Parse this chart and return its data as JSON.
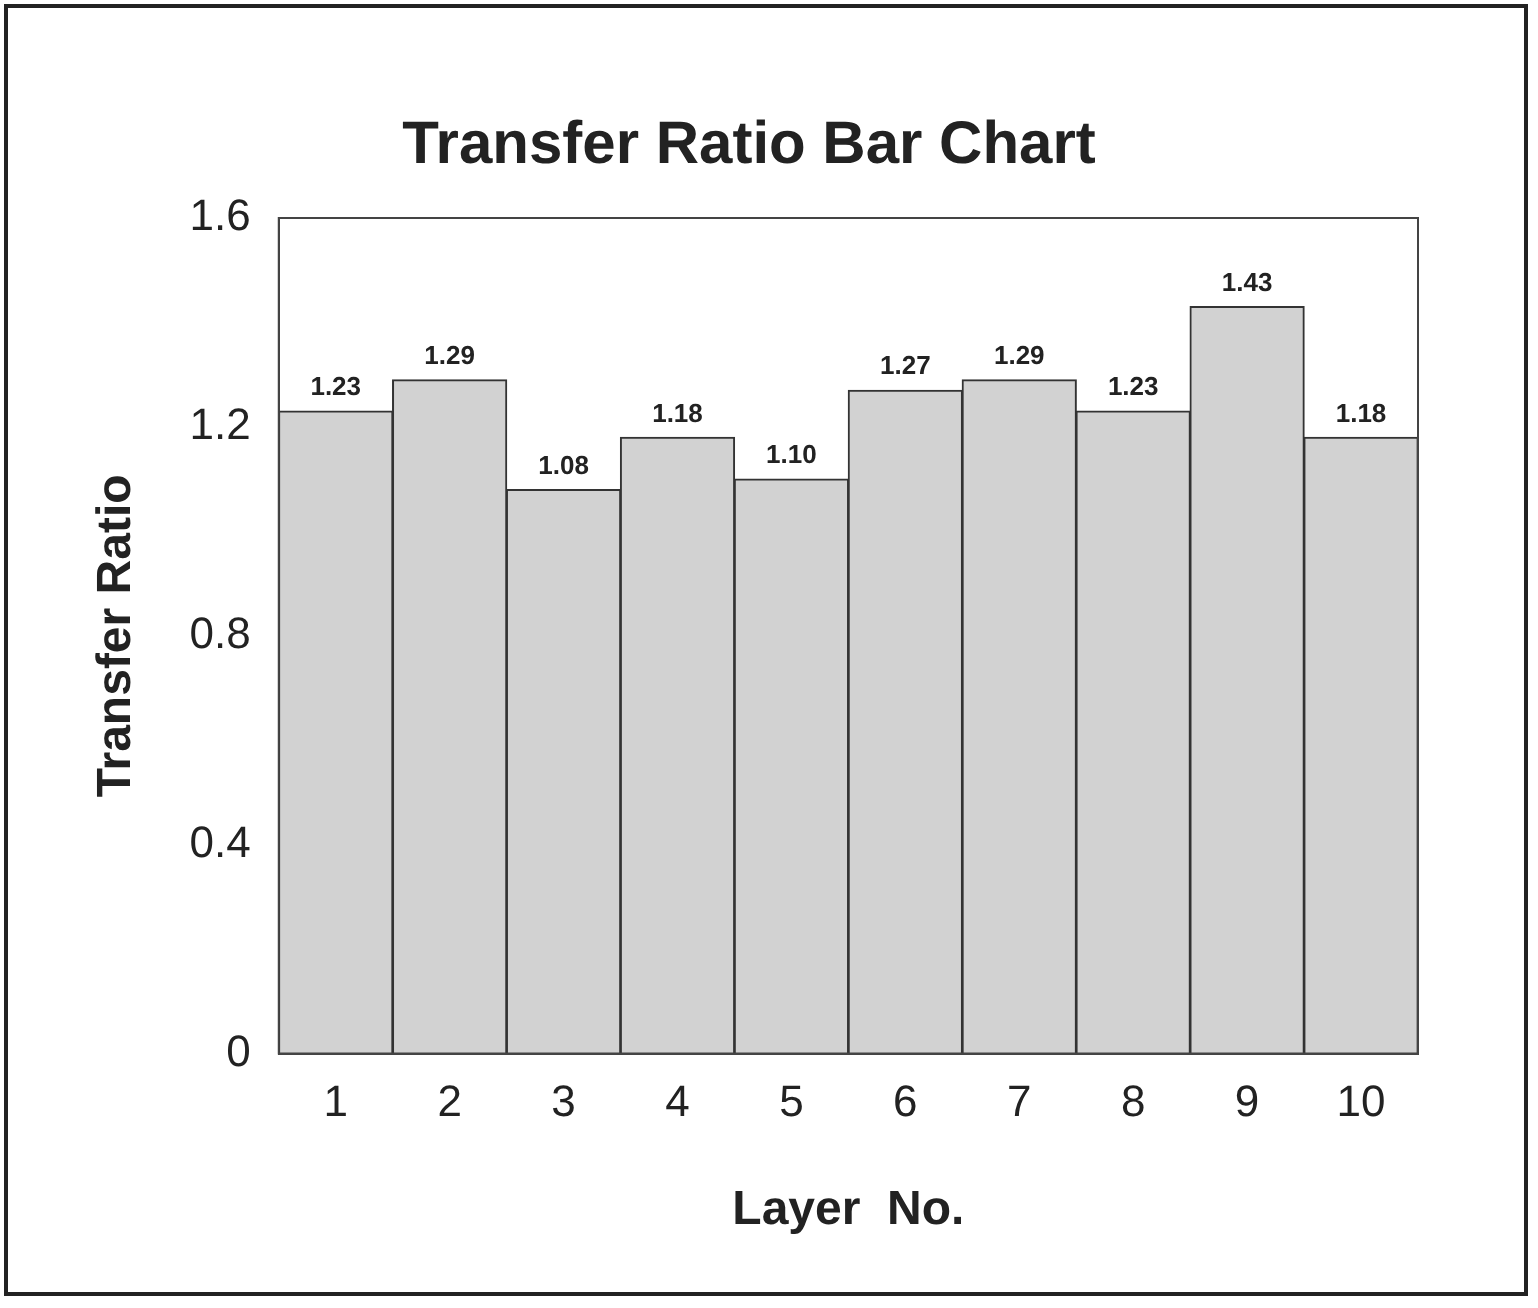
{
  "chart_data": {
    "type": "bar",
    "title": "Transfer Ratio Bar Chart",
    "xlabel": "Layer  No.",
    "ylabel": "Transfer Ratio",
    "categories": [
      "1",
      "2",
      "3",
      "4",
      "5",
      "6",
      "7",
      "8",
      "9",
      "10"
    ],
    "values": [
      1.23,
      1.29,
      1.08,
      1.18,
      1.1,
      1.27,
      1.29,
      1.23,
      1.43,
      1.18
    ],
    "value_labels": [
      "1.23",
      "1.29",
      "1.08",
      "1.18",
      "1.10",
      "1.27",
      "1.29",
      "1.23",
      "1.43",
      "1.18"
    ],
    "color": "#d2d2d2",
    "ylim": [
      0,
      1.6
    ],
    "yticks": [
      0,
      0.4,
      0.8,
      1.2,
      1.6
    ],
    "grid": false,
    "legend": false
  }
}
